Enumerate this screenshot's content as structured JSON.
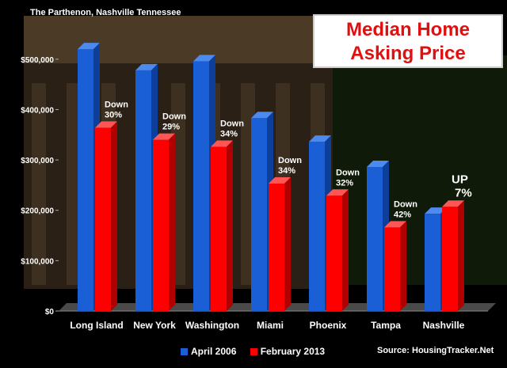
{
  "chart_data": {
    "type": "bar",
    "title_line1": "Median Home",
    "title_line2": "Asking Price",
    "photo_caption": "The Parthenon, Nashville Tennessee",
    "source": "Source: HousingTracker.Net",
    "categories": [
      "Long Island",
      "New York",
      "Washington",
      "Miami",
      "Phoenix",
      "Tampa",
      "Nashville"
    ],
    "series": [
      {
        "name": "April 2006",
        "color": "#1a5fd6",
        "values": [
          520000,
          478000,
          496000,
          383000,
          336000,
          286000,
          193000
        ]
      },
      {
        "name": "February 2013",
        "color": "#ff0000",
        "values": [
          364000,
          340000,
          326000,
          253000,
          229000,
          166000,
          207000
        ]
      }
    ],
    "change_labels": [
      {
        "line1": "Down",
        "line2": "30%"
      },
      {
        "line1": "Down",
        "line2": "29%"
      },
      {
        "line1": "Down",
        "line2": "34%"
      },
      {
        "line1": "Down",
        "line2": "34%"
      },
      {
        "line1": "Down",
        "line2": "32%"
      },
      {
        "line1": "Down",
        "line2": "42%"
      },
      {
        "line1": "UP",
        "line2": "7%"
      }
    ],
    "y_ticks": [
      "$0",
      "$100,000",
      "$200,000",
      "$300,000",
      "$400,000",
      "$500,000"
    ],
    "ylim": [
      0,
      550000
    ],
    "grid": false,
    "legend_position": "bottom"
  }
}
